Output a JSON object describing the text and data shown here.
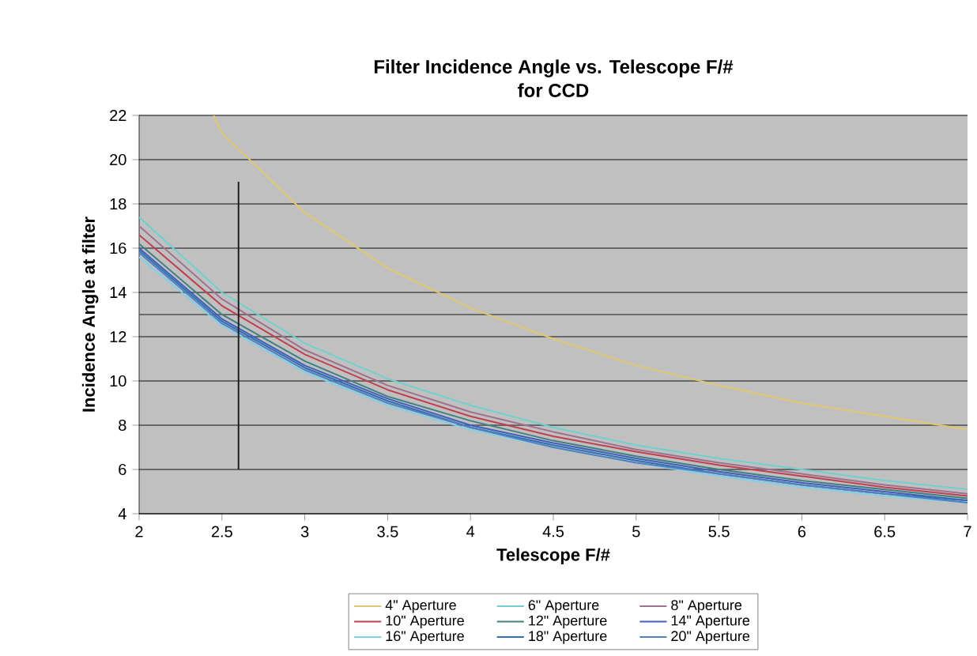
{
  "chart_data": {
    "type": "line",
    "title": "Filter Incidence Angle vs. Telescope F/#",
    "subtitle": "for CCD",
    "xlabel": "Telescope F/#",
    "ylabel": "Incidence Angle at filter",
    "x": [
      2,
      2.5,
      3,
      3.5,
      4,
      4.5,
      5,
      5.5,
      6,
      6.5,
      7
    ],
    "series": [
      {
        "name": "4\" Aperture",
        "color": "#e0c870",
        "x": [
          2.45,
          2.5,
          3,
          3.5,
          4,
          4.5,
          5,
          5.5,
          6,
          6.5,
          7
        ],
        "values": [
          22,
          21.2,
          17.6,
          15.1,
          13.3,
          11.9,
          10.7,
          9.8,
          9.0,
          8.4,
          7.8
        ]
      },
      {
        "name": "6\" Aperture",
        "color": "#70d0d0",
        "values": [
          17.4,
          14.0,
          11.7,
          10.1,
          8.9,
          7.9,
          7.1,
          6.5,
          6.0,
          5.5,
          5.1
        ]
      },
      {
        "name": "8\" Aperture",
        "color": "#a07090",
        "values": [
          17.0,
          13.7,
          11.4,
          9.8,
          8.6,
          7.7,
          6.9,
          6.3,
          5.8,
          5.3,
          4.9
        ]
      },
      {
        "name": "10\" Aperture",
        "color": "#c04050",
        "values": [
          16.6,
          13.4,
          11.2,
          9.6,
          8.4,
          7.5,
          6.8,
          6.2,
          5.7,
          5.2,
          4.8
        ]
      },
      {
        "name": "12\" Aperture",
        "color": "#408080",
        "values": [
          16.2,
          13.0,
          10.9,
          9.3,
          8.2,
          7.3,
          6.6,
          6.0,
          5.5,
          5.1,
          4.7
        ]
      },
      {
        "name": "14\" Aperture",
        "color": "#4060c0",
        "values": [
          16.0,
          12.8,
          10.7,
          9.2,
          8.0,
          7.2,
          6.5,
          5.9,
          5.4,
          5.0,
          4.6
        ]
      },
      {
        "name": "16\" Aperture",
        "color": "#80d0e8",
        "values": [
          15.6,
          12.5,
          10.4,
          8.9,
          7.8,
          7.0,
          6.3,
          5.7,
          5.2,
          4.8,
          4.5
        ]
      },
      {
        "name": "18\" Aperture",
        "color": "#3070b0",
        "values": [
          15.9,
          12.7,
          10.6,
          9.1,
          7.9,
          7.1,
          6.4,
          5.8,
          5.3,
          4.9,
          4.6
        ]
      },
      {
        "name": "20\" Aperture",
        "color": "#5080c0",
        "values": [
          15.8,
          12.6,
          10.5,
          9.0,
          7.9,
          7.0,
          6.3,
          5.8,
          5.3,
          4.9,
          4.5
        ]
      },
      {
        "color": "#202020",
        "x": [
          2.6,
          2.6
        ],
        "values": [
          6,
          19
        ]
      }
    ],
    "ref_lines": [
      {
        "axis": "y",
        "value": 13,
        "color": "#505050"
      }
    ],
    "xlim": [
      2,
      7
    ],
    "ylim": [
      4,
      22
    ],
    "xticks": [
      2,
      2.5,
      3,
      3.5,
      4,
      4.5,
      5,
      5.5,
      6,
      6.5,
      7
    ],
    "yticks": [
      4,
      6,
      8,
      10,
      12,
      14,
      16,
      18,
      20,
      22
    ],
    "grid": "y",
    "legend": "bottom",
    "marker": "none",
    "line_style": "solid"
  }
}
